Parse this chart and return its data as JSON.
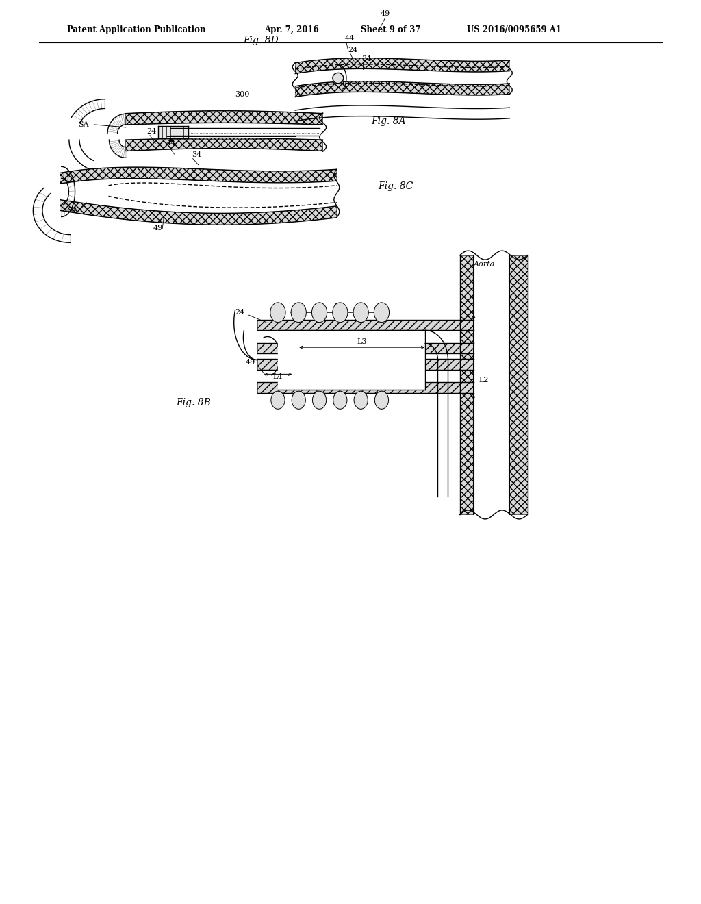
{
  "title": "Patent Application Publication",
  "date": "Apr. 7, 2016",
  "sheet": "Sheet 9 of 37",
  "patent_num": "US 2016/0095659 A1",
  "bg_color": "#ffffff",
  "line_color": "#000000"
}
